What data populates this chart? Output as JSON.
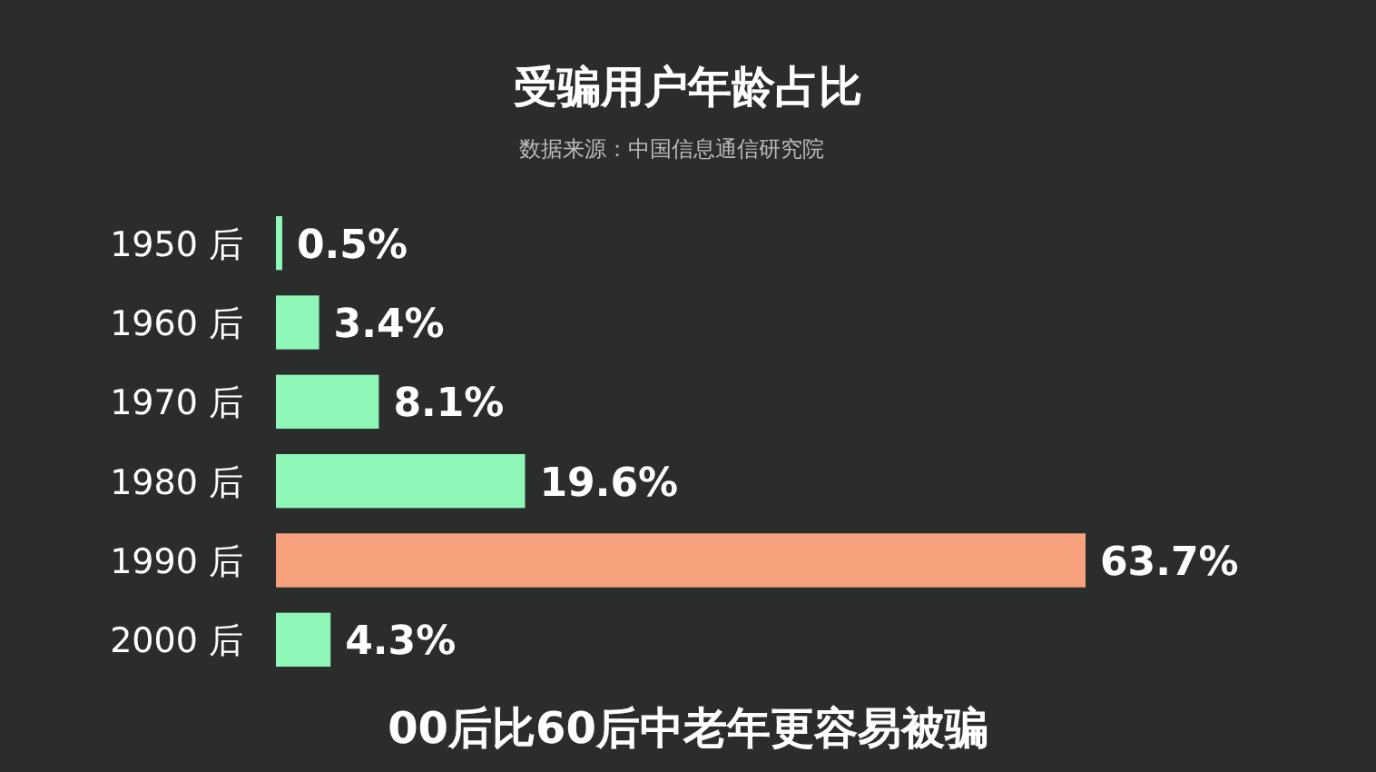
{
  "chart_data": {
    "type": "bar",
    "orientation": "horizontal",
    "title": "受骗用户年龄占比",
    "subtitle": "数据来源：中国信息通信研究院",
    "categories": [
      "1950 后",
      "1960 后",
      "1970 后",
      "1980 后",
      "1990 后",
      "2000 后"
    ],
    "values": [
      0.5,
      3.4,
      8.1,
      19.6,
      63.7,
      4.3
    ],
    "colors": [
      "#8ef7b8",
      "#8ef7b8",
      "#8ef7b8",
      "#8ef7b8",
      "#f7a27c",
      "#8ef7b8"
    ],
    "value_labels": [
      "0.5%",
      "3.4%",
      "8.1%",
      "19.6%",
      "63.7%",
      "4.3%"
    ],
    "annotations": [
      "00后比60后中老年更容易被骗"
    ]
  }
}
